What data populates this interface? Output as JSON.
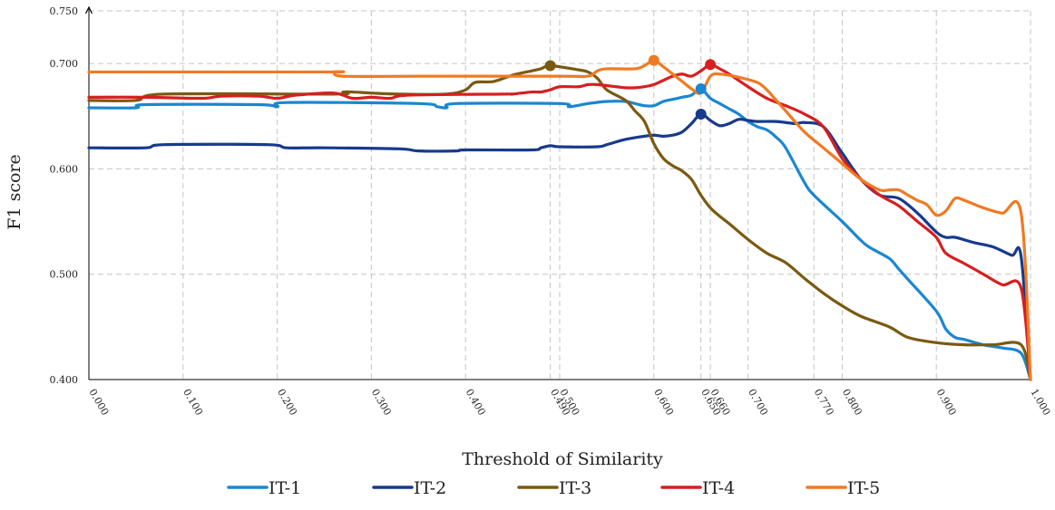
{
  "chart_data": {
    "type": "line",
    "title": "",
    "xlabel": "Threshold of Similarity",
    "ylabel": "F1 score",
    "xlim": [
      0,
      1
    ],
    "ylim": [
      0.4,
      0.75
    ],
    "grid": true,
    "legend_position": "bottom",
    "x_ticks": [
      {
        "v": 0.0,
        "label": "0.000"
      },
      {
        "v": 0.1,
        "label": "0.100"
      },
      {
        "v": 0.2,
        "label": "0.200"
      },
      {
        "v": 0.3,
        "label": "0.300"
      },
      {
        "v": 0.4,
        "label": "0.400"
      },
      {
        "v": 0.49,
        "label": "0.490"
      },
      {
        "v": 0.5,
        "label": "0.500"
      },
      {
        "v": 0.6,
        "label": "0.600"
      },
      {
        "v": 0.65,
        "label": "0.650"
      },
      {
        "v": 0.66,
        "label": "0.660"
      },
      {
        "v": 0.7,
        "label": "0.700"
      },
      {
        "v": 0.77,
        "label": "0.770"
      },
      {
        "v": 0.8,
        "label": "0.800"
      },
      {
        "v": 0.9,
        "label": "0.900"
      },
      {
        "v": 1.0,
        "label": "1.000"
      }
    ],
    "y_ticks": [
      {
        "v": 0.4,
        "label": "0.400"
      },
      {
        "v": 0.5,
        "label": "0.500"
      },
      {
        "v": 0.6,
        "label": "0.600"
      },
      {
        "v": 0.7,
        "label": "0.700"
      },
      {
        "v": 0.75,
        "label": "0.750"
      }
    ],
    "series": [
      {
        "name": "IT-1",
        "color": "#1a87d0",
        "peak": [
          0.65,
          0.676
        ],
        "x": [
          0.0,
          0.05,
          0.06,
          0.18,
          0.2,
          0.21,
          0.35,
          0.37,
          0.38,
          0.39,
          0.5,
          0.51,
          0.53,
          0.55,
          0.57,
          0.58,
          0.59,
          0.6,
          0.61,
          0.62,
          0.63,
          0.64,
          0.65,
          0.66,
          0.67,
          0.68,
          0.69,
          0.7,
          0.71,
          0.72,
          0.73,
          0.74,
          0.76,
          0.77,
          0.8,
          0.82,
          0.83,
          0.85,
          0.86,
          0.87,
          0.9,
          0.91,
          0.92,
          0.93,
          0.95,
          0.97,
          0.99,
          1.0
        ],
        "y": [
          0.658,
          0.658,
          0.661,
          0.661,
          0.659,
          0.663,
          0.662,
          0.659,
          0.658,
          0.662,
          0.662,
          0.659,
          0.662,
          0.664,
          0.664,
          0.662,
          0.66,
          0.66,
          0.664,
          0.666,
          0.668,
          0.67,
          0.676,
          0.667,
          0.662,
          0.657,
          0.652,
          0.645,
          0.64,
          0.637,
          0.63,
          0.62,
          0.587,
          0.575,
          0.55,
          0.532,
          0.525,
          0.515,
          0.505,
          0.495,
          0.465,
          0.448,
          0.44,
          0.438,
          0.433,
          0.43,
          0.425,
          0.4
        ]
      },
      {
        "name": "IT-2",
        "color": "#173a8c",
        "peak": [
          0.65,
          0.652
        ],
        "x": [
          0.0,
          0.06,
          0.08,
          0.19,
          0.21,
          0.25,
          0.33,
          0.35,
          0.39,
          0.4,
          0.47,
          0.48,
          0.49,
          0.5,
          0.54,
          0.55,
          0.57,
          0.59,
          0.6,
          0.61,
          0.62,
          0.63,
          0.64,
          0.65,
          0.66,
          0.67,
          0.68,
          0.69,
          0.7,
          0.71,
          0.73,
          0.75,
          0.76,
          0.78,
          0.8,
          0.82,
          0.84,
          0.86,
          0.88,
          0.9,
          0.91,
          0.92,
          0.94,
          0.96,
          0.98,
          0.99,
          1.0
        ],
        "y": [
          0.62,
          0.62,
          0.623,
          0.623,
          0.62,
          0.62,
          0.619,
          0.617,
          0.617,
          0.618,
          0.618,
          0.62,
          0.622,
          0.621,
          0.621,
          0.623,
          0.628,
          0.631,
          0.632,
          0.631,
          0.632,
          0.635,
          0.643,
          0.652,
          0.646,
          0.641,
          0.643,
          0.647,
          0.646,
          0.645,
          0.645,
          0.643,
          0.644,
          0.64,
          0.615,
          0.59,
          0.575,
          0.572,
          0.558,
          0.54,
          0.535,
          0.535,
          0.53,
          0.526,
          0.518,
          0.517,
          0.4
        ]
      },
      {
        "name": "IT-3",
        "color": "#7a5a10",
        "peak": [
          0.49,
          0.698
        ],
        "x": [
          0.0,
          0.05,
          0.08,
          0.26,
          0.27,
          0.28,
          0.3,
          0.33,
          0.38,
          0.4,
          0.41,
          0.43,
          0.45,
          0.47,
          0.48,
          0.49,
          0.52,
          0.53,
          0.54,
          0.55,
          0.57,
          0.58,
          0.59,
          0.6,
          0.61,
          0.62,
          0.63,
          0.64,
          0.65,
          0.66,
          0.67,
          0.68,
          0.7,
          0.72,
          0.74,
          0.76,
          0.78,
          0.8,
          0.82,
          0.85,
          0.87,
          0.9,
          0.93,
          0.96,
          0.99,
          1.0
        ],
        "y": [
          0.665,
          0.665,
          0.671,
          0.671,
          0.673,
          0.673,
          0.672,
          0.671,
          0.671,
          0.675,
          0.682,
          0.683,
          0.689,
          0.693,
          0.695,
          0.698,
          0.694,
          0.692,
          0.686,
          0.675,
          0.665,
          0.655,
          0.645,
          0.624,
          0.61,
          0.603,
          0.598,
          0.59,
          0.575,
          0.563,
          0.555,
          0.548,
          0.533,
          0.52,
          0.511,
          0.496,
          0.482,
          0.47,
          0.46,
          0.45,
          0.44,
          0.435,
          0.433,
          0.433,
          0.433,
          0.4
        ]
      },
      {
        "name": "IT-4",
        "color": "#d61f1f",
        "peak": [
          0.66,
          0.699
        ],
        "x": [
          0.0,
          0.06,
          0.12,
          0.14,
          0.18,
          0.2,
          0.22,
          0.26,
          0.28,
          0.3,
          0.32,
          0.34,
          0.44,
          0.45,
          0.47,
          0.48,
          0.49,
          0.5,
          0.52,
          0.53,
          0.54,
          0.56,
          0.57,
          0.58,
          0.59,
          0.6,
          0.61,
          0.62,
          0.63,
          0.64,
          0.65,
          0.66,
          0.67,
          0.68,
          0.7,
          0.72,
          0.74,
          0.76,
          0.78,
          0.8,
          0.82,
          0.84,
          0.86,
          0.88,
          0.9,
          0.91,
          0.93,
          0.95,
          0.97,
          0.99,
          1.0
        ],
        "y": [
          0.668,
          0.668,
          0.667,
          0.669,
          0.669,
          0.667,
          0.67,
          0.672,
          0.667,
          0.668,
          0.667,
          0.67,
          0.671,
          0.671,
          0.673,
          0.673,
          0.675,
          0.678,
          0.678,
          0.68,
          0.68,
          0.678,
          0.677,
          0.677,
          0.678,
          0.68,
          0.684,
          0.688,
          0.69,
          0.688,
          0.693,
          0.699,
          0.695,
          0.69,
          0.678,
          0.667,
          0.66,
          0.652,
          0.64,
          0.61,
          0.59,
          0.575,
          0.565,
          0.55,
          0.535,
          0.52,
          0.51,
          0.5,
          0.49,
          0.487,
          0.4
        ]
      },
      {
        "name": "IT-5",
        "color": "#f07a22",
        "peak": [
          0.6,
          0.703
        ],
        "x": [
          0.0,
          0.25,
          0.26,
          0.27,
          0.35,
          0.5,
          0.53,
          0.54,
          0.55,
          0.58,
          0.59,
          0.6,
          0.61,
          0.62,
          0.63,
          0.64,
          0.65,
          0.66,
          0.67,
          0.69,
          0.71,
          0.72,
          0.73,
          0.74,
          0.76,
          0.78,
          0.8,
          0.82,
          0.84,
          0.85,
          0.86,
          0.87,
          0.88,
          0.89,
          0.9,
          0.91,
          0.92,
          0.93,
          0.95,
          0.97,
          0.99,
          1.0
        ],
        "y": [
          0.692,
          0.692,
          0.692,
          0.688,
          0.688,
          0.688,
          0.688,
          0.693,
          0.695,
          0.695,
          0.698,
          0.703,
          0.697,
          0.69,
          0.683,
          0.676,
          0.672,
          0.688,
          0.69,
          0.687,
          0.682,
          0.675,
          0.665,
          0.655,
          0.635,
          0.62,
          0.605,
          0.59,
          0.58,
          0.58,
          0.58,
          0.575,
          0.57,
          0.566,
          0.556,
          0.56,
          0.572,
          0.57,
          0.563,
          0.558,
          0.558,
          0.4
        ]
      }
    ]
  }
}
